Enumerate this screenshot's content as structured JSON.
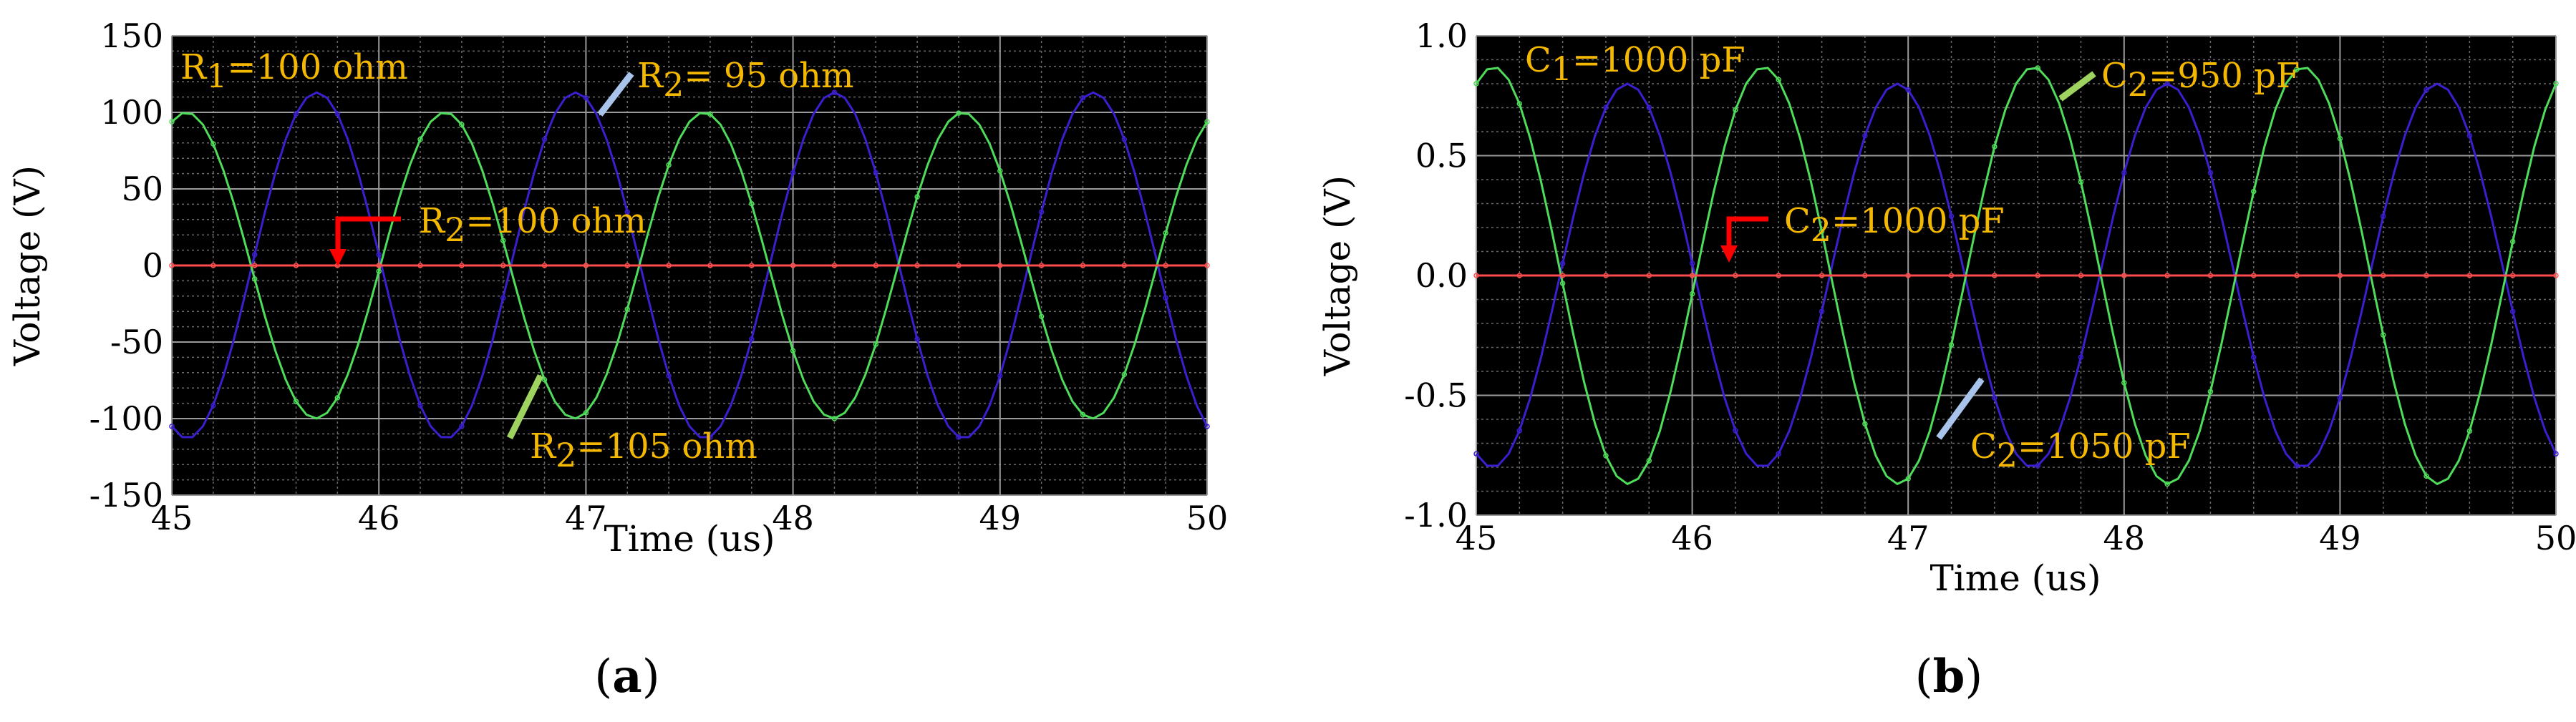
{
  "chart_data": [
    {
      "id": "a",
      "type": "line",
      "panel_label": "(a)",
      "panel_label_parts": [
        "(",
        "a",
        ")"
      ],
      "xlabel": "Time  (us)",
      "ylabel": "Voltage (V)",
      "xlim": [
        45,
        50
      ],
      "ylim": [
        -150,
        150
      ],
      "xticks": [
        45,
        46,
        47,
        48,
        49,
        50
      ],
      "xtick_labels": [
        "45",
        "46",
        "47",
        "48",
        "49",
        "50"
      ],
      "yticks": [
        -150,
        -100,
        -50,
        0,
        50,
        100,
        150
      ],
      "ytick_labels": [
        "-150",
        "-100",
        "-50",
        "0",
        "50",
        "100",
        "150"
      ],
      "grid": true,
      "background": "#000000",
      "series": [
        {
          "name": "R2=95 ohm",
          "color": "#3b1fcf",
          "amplitude": 113,
          "period": 1.25,
          "phase_time": 45.7,
          "offset": 0
        },
        {
          "name": "R2=105 ohm",
          "color": "#4fdc5a",
          "amplitude": 100,
          "period": 1.25,
          "phase_time": 45.07,
          "offset": 0
        },
        {
          "name": "R2=100 ohm",
          "color": "#ff4d4d",
          "amplitude": 0,
          "period": 1.25,
          "phase_time": 45.0,
          "offset": 0
        }
      ],
      "annotations": [
        {
          "main": "R",
          "sub": "1",
          "rest": "=100 ohm"
        },
        {
          "main": "R",
          "sub": "2",
          "rest": "= 95 ohm",
          "arrow_color": "#a9c4ea"
        },
        {
          "main": "R",
          "sub": "2",
          "rest": "=100 ohm",
          "arrow_color": "#ff0000"
        },
        {
          "main": "R",
          "sub": "2",
          "rest": "=105 ohm",
          "arrow_color": "#9ed35f"
        }
      ]
    },
    {
      "id": "b",
      "type": "line",
      "panel_label": "(b)",
      "panel_label_parts": [
        "(",
        "b",
        ")"
      ],
      "xlabel": "Time  (us)",
      "ylabel": "Voltage (V)",
      "xlim": [
        45,
        50
      ],
      "ylim": [
        -1.0,
        1.0
      ],
      "xticks": [
        45,
        46,
        47,
        48,
        49,
        50
      ],
      "xtick_labels": [
        "45",
        "46",
        "47",
        "48",
        "49",
        "50"
      ],
      "yticks": [
        -1.0,
        -0.5,
        0.0,
        0.5,
        1.0
      ],
      "ytick_labels": [
        "-1.0",
        "-0.5",
        "0.0",
        "0.5",
        "1.0"
      ],
      "grid": true,
      "background": "#000000",
      "series": [
        {
          "name": "C2=1050 pF",
          "color": "#3b1fcf",
          "amplitude": 0.8,
          "period": 1.25,
          "phase_time": 45.7,
          "offset": 0
        },
        {
          "name": "C2=950 pF",
          "color": "#4fdc5a",
          "amplitude": 0.87,
          "period": 1.25,
          "phase_time": 45.08,
          "offset": 0
        },
        {
          "name": "C2=1000 pF",
          "color": "#ff4d4d",
          "amplitude": 0,
          "period": 1.25,
          "phase_time": 45.0,
          "offset": 0
        }
      ],
      "annotations": [
        {
          "main": "C",
          "sub": "1",
          "rest": "=1000 pF"
        },
        {
          "main": "C",
          "sub": "2",
          "rest": "=950 pF",
          "arrow_color": "#9ed35f"
        },
        {
          "main": "C",
          "sub": "2",
          "rest": "=1000 pF",
          "arrow_color": "#ff0000"
        },
        {
          "main": "C",
          "sub": "2",
          "rest": "=1050 pF",
          "arrow_color": "#a9c4ea"
        }
      ]
    }
  ]
}
